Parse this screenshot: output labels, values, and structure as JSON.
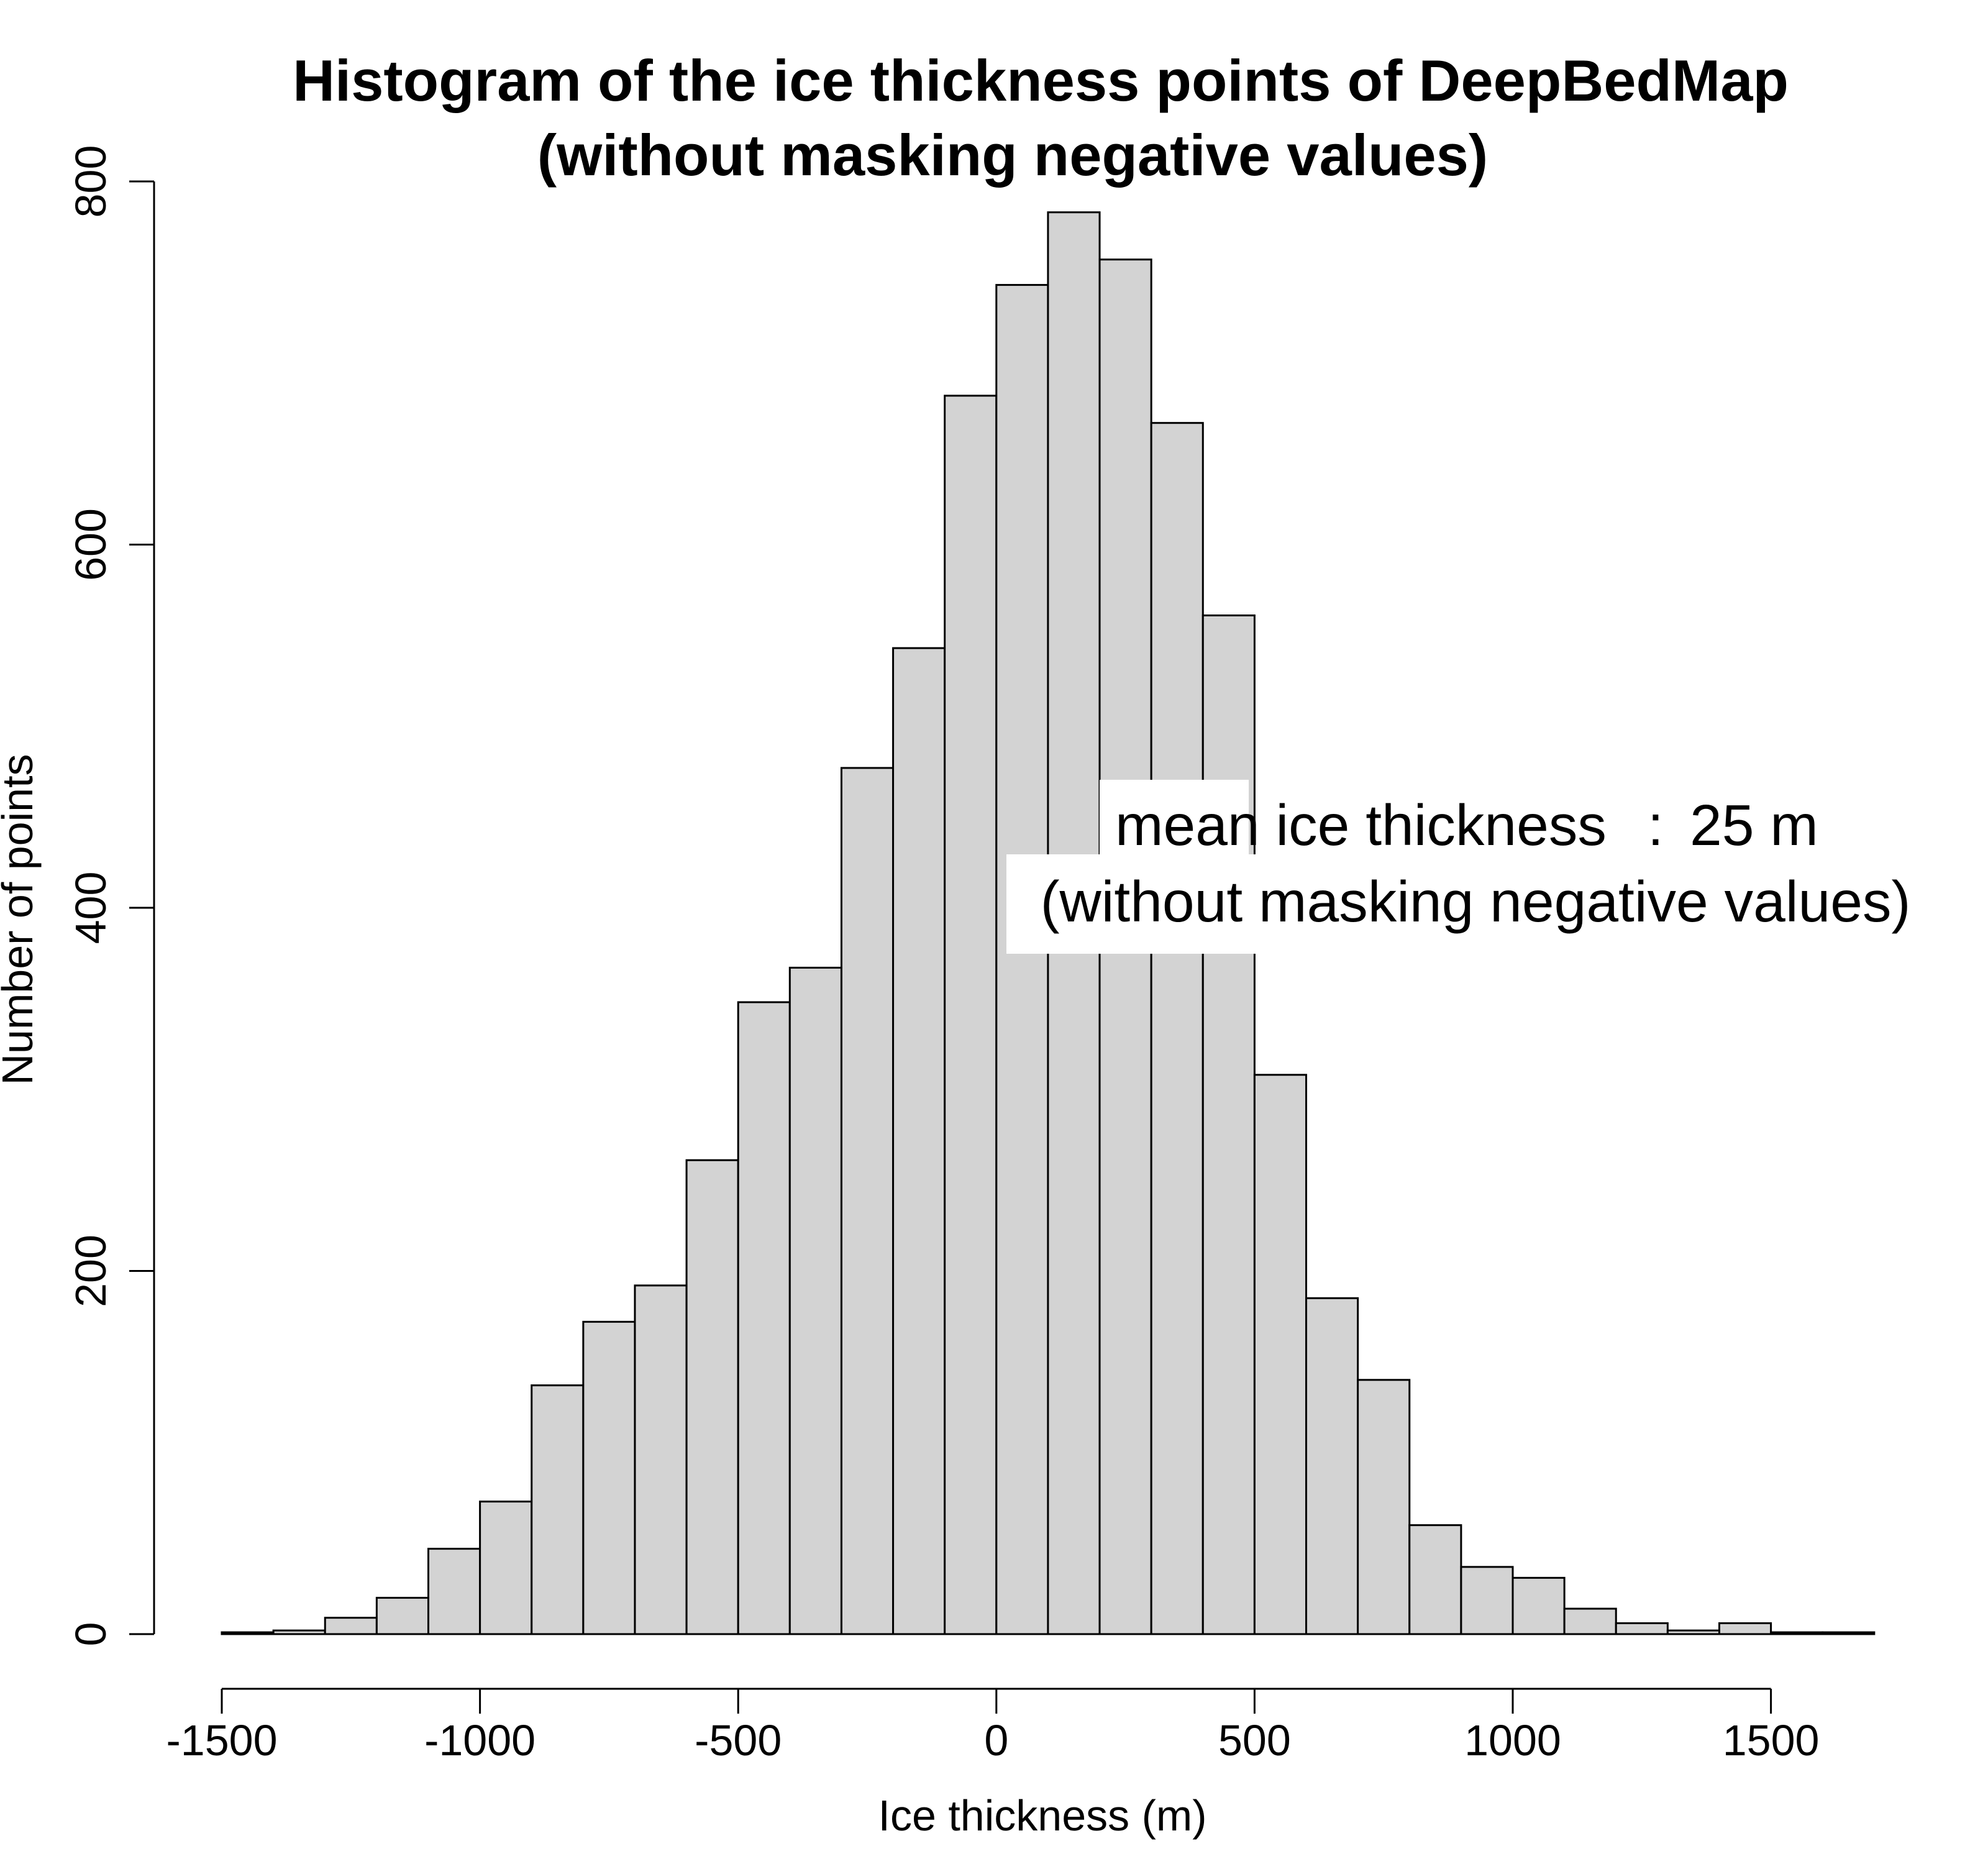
{
  "chart_data": {
    "type": "bar",
    "title_line1": "Histogram of the ice thickness points of DeepBedMap",
    "title_line2": "(without masking negative values)",
    "xlabel": "Ice thickness (m)",
    "ylabel": "Number of points",
    "xlim": [
      -1500,
      1700
    ],
    "ylim": [
      0,
      800
    ],
    "x_ticks": [
      -1500,
      -1000,
      -500,
      0,
      500,
      1000,
      1500
    ],
    "x_tick_labels": [
      "-1500",
      "-1000",
      "-500",
      "0",
      "500",
      "1000",
      "1500"
    ],
    "y_ticks": [
      0,
      200,
      400,
      600,
      800
    ],
    "y_tick_labels": [
      "0",
      "200",
      "400",
      "600",
      "800"
    ],
    "bin_width": 100,
    "bins": [
      {
        "start": -1500,
        "count": 1
      },
      {
        "start": -1400,
        "count": 2
      },
      {
        "start": -1300,
        "count": 9
      },
      {
        "start": -1200,
        "count": 20
      },
      {
        "start": -1100,
        "count": 47
      },
      {
        "start": -1000,
        "count": 73
      },
      {
        "start": -900,
        "count": 137
      },
      {
        "start": -800,
        "count": 172
      },
      {
        "start": -700,
        "count": 192
      },
      {
        "start": -600,
        "count": 261
      },
      {
        "start": -500,
        "count": 348
      },
      {
        "start": -400,
        "count": 367
      },
      {
        "start": -300,
        "count": 477
      },
      {
        "start": -200,
        "count": 543
      },
      {
        "start": -100,
        "count": 682
      },
      {
        "start": 0,
        "count": 743
      },
      {
        "start": 100,
        "count": 783
      },
      {
        "start": 200,
        "count": 757
      },
      {
        "start": 300,
        "count": 667
      },
      {
        "start": 400,
        "count": 561
      },
      {
        "start": 500,
        "count": 308
      },
      {
        "start": 600,
        "count": 185
      },
      {
        "start": 700,
        "count": 140
      },
      {
        "start": 800,
        "count": 60
      },
      {
        "start": 900,
        "count": 37
      },
      {
        "start": 1000,
        "count": 31
      },
      {
        "start": 1100,
        "count": 14
      },
      {
        "start": 1200,
        "count": 6
      },
      {
        "start": 1300,
        "count": 2
      },
      {
        "start": 1400,
        "count": 6
      },
      {
        "start": 1500,
        "count": 1
      },
      {
        "start": 1600,
        "count": 1
      }
    ],
    "annotation_line1": "mean ice thickness",
    "annotation_sep": ":",
    "annotation_value": "25 m",
    "annotation_line2": "(without masking negative values)",
    "grid": false,
    "legend": "none"
  }
}
